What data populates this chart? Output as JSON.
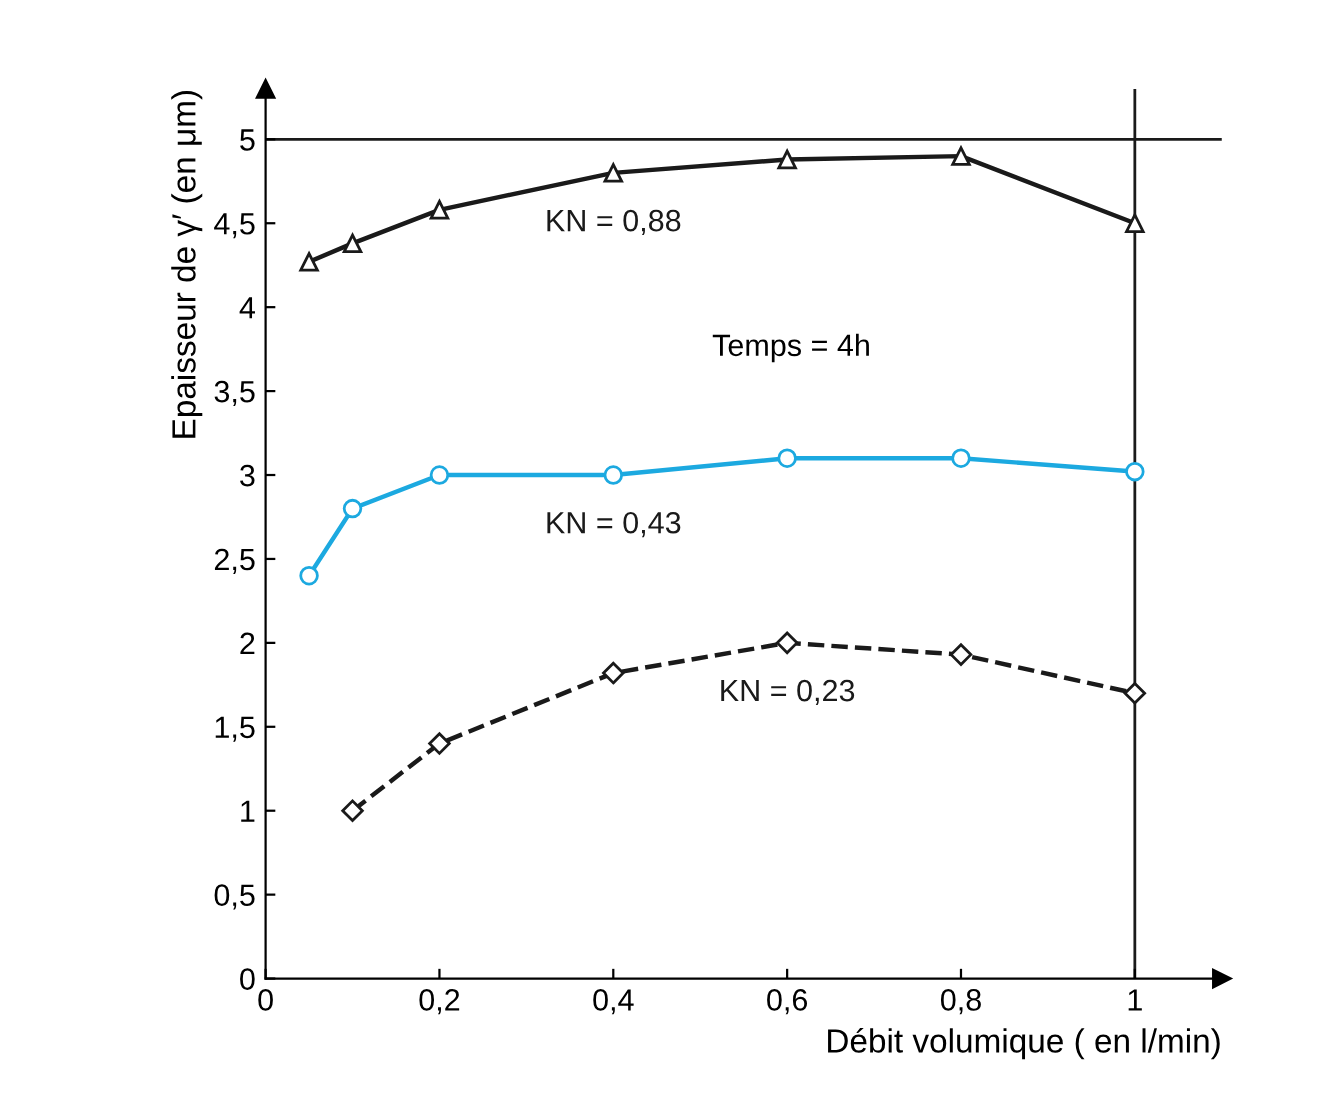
{
  "chart_data": {
    "type": "line",
    "xlabel": "Débit volumique ( en l/min)",
    "ylabel": "Epaisseur de γ′ (en μm)",
    "xlim": [
      0,
      1.1
    ],
    "ylim": [
      0,
      5.3
    ],
    "xticks": [
      0,
      {
        "value": 0.2,
        "label": "0,2"
      },
      {
        "value": 0.4,
        "label": "0,4"
      },
      {
        "value": 0.6,
        "label": "0,6"
      },
      {
        "value": 0.8,
        "label": "0,8"
      },
      1
    ],
    "yticks": [
      0,
      {
        "value": 0.5,
        "label": "0,5"
      },
      1,
      {
        "value": 1.5,
        "label": "1,5"
      },
      2,
      {
        "value": 2.5,
        "label": "2,5"
      },
      3,
      {
        "value": 3.5,
        "label": "3,5"
      },
      4,
      {
        "value": 4.5,
        "label": "4,5"
      },
      5
    ],
    "grid": false,
    "legend": false,
    "series": [
      {
        "name": "KN = 0,88",
        "color": "#1a1a1a",
        "marker": "triangle",
        "line_style": "solid",
        "x": [
          0.05,
          0.1,
          0.2,
          0.4,
          0.6,
          0.8,
          1
        ],
        "values": [
          4.27,
          4.38,
          4.58,
          4.8,
          4.88,
          4.9,
          4.5
        ]
      },
      {
        "name": "KN = 0,43",
        "color": "#1ca9e0",
        "marker": "circle",
        "line_style": "solid",
        "x": [
          0.05,
          0.1,
          0.2,
          0.4,
          0.6,
          0.8,
          1
        ],
        "values": [
          2.4,
          2.8,
          3.0,
          3.0,
          3.1,
          3.1,
          3.02
        ]
      },
      {
        "name": "KN = 0,23",
        "color": "#1a1a1a",
        "marker": "diamond",
        "line_style": "dashed",
        "x": [
          0.1,
          0.2,
          0.4,
          0.6,
          0.8,
          1
        ],
        "values": [
          1.0,
          1.4,
          1.82,
          2.0,
          1.93,
          1.7
        ]
      }
    ],
    "ref_lines": [
      {
        "axis": "y",
        "value": 5,
        "color": "#1a1a1a"
      },
      {
        "axis": "x",
        "value": 1,
        "color": "#1a1a1a"
      }
    ],
    "annotations": [
      "Temps = 4h"
    ]
  }
}
